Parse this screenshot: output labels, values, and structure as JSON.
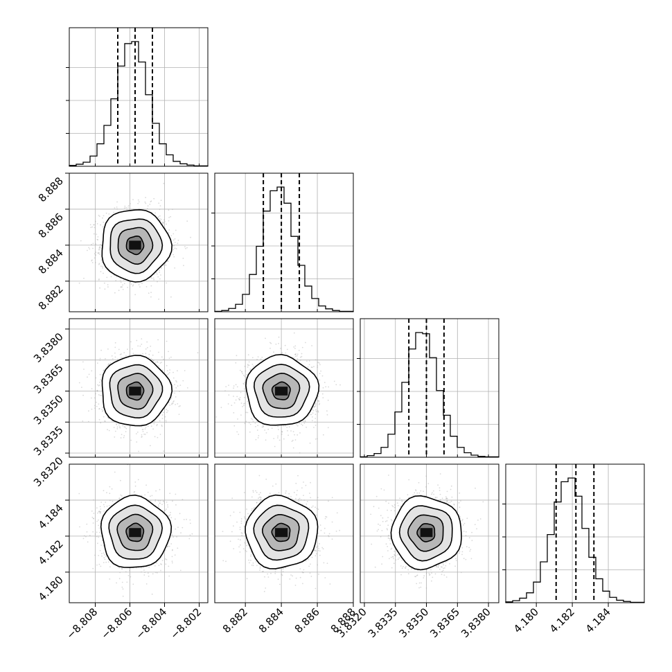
{
  "chart_data": {
    "type": "corner",
    "title": "",
    "grid": true,
    "parameters": [
      {
        "axis_label": "",
        "mean": -8.8057,
        "sigma": 0.001,
        "quantiles": [
          -8.8067,
          -8.8057,
          -8.8047
        ],
        "range": [
          -8.8095,
          -8.8015
        ],
        "ticks": [
          -8.808,
          -8.806,
          -8.804,
          -8.802
        ],
        "tick_labels": [
          "−8.808",
          "−8.806",
          "−8.804",
          "−8.802"
        ]
      },
      {
        "axis_label": "",
        "mean": 8.884,
        "sigma": 0.001,
        "quantiles": [
          8.883,
          8.884,
          8.885
        ],
        "range": [
          8.8803,
          8.888
        ],
        "ticks": [
          8.882,
          8.884,
          8.886,
          8.888
        ],
        "tick_labels": [
          "8.882",
          "8.884",
          "8.886",
          "8.888"
        ]
      },
      {
        "axis_label": "",
        "mean": 3.835,
        "sigma": 0.00085,
        "quantiles": [
          3.83415,
          3.835,
          3.83585
        ],
        "range": [
          3.8318,
          3.8385
        ],
        "ticks": [
          3.832,
          3.8335,
          3.835,
          3.8365,
          3.838
        ],
        "tick_labels": [
          "3.8320",
          "3.8335",
          "3.8350",
          "3.8365",
          "3.8380"
        ]
      },
      {
        "axis_label": "",
        "mean": 4.1822,
        "sigma": 0.001,
        "quantiles": [
          4.1811,
          4.1822,
          4.1832
        ],
        "range": [
          4.1783,
          4.186
        ],
        "ticks": [
          4.18,
          4.182,
          4.184
        ],
        "tick_labels": [
          "4.180",
          "4.182",
          "4.184"
        ]
      }
    ],
    "histograms": [
      {
        "parameter": 0,
        "bins": 20,
        "counts": [
          2,
          5,
          10,
          25,
          55,
          100,
          165,
          245,
          300,
          305,
          255,
          175,
          105,
          55,
          28,
          12,
          6,
          3,
          1,
          1
        ]
      },
      {
        "parameter": 1,
        "bins": 20,
        "counts": [
          1,
          3,
          8,
          18,
          42,
          90,
          158,
          243,
          292,
          301,
          262,
          182,
          112,
          62,
          32,
          14,
          7,
          3,
          1,
          1
        ]
      },
      {
        "parameter": 2,
        "bins": 20,
        "counts": [
          1,
          4,
          9,
          24,
          56,
          110,
          182,
          263,
          303,
          300,
          242,
          162,
          102,
          51,
          24,
          11,
          5,
          2,
          1,
          1
        ]
      },
      {
        "parameter": 3,
        "bins": 20,
        "counts": [
          2,
          5,
          11,
          24,
          50,
          99,
          165,
          244,
          293,
          302,
          258,
          180,
          110,
          58,
          28,
          13,
          6,
          3,
          1,
          1
        ]
      }
    ],
    "contour_levels_sigma": [
      0.5,
      1.0,
      1.5,
      2.0
    ]
  }
}
